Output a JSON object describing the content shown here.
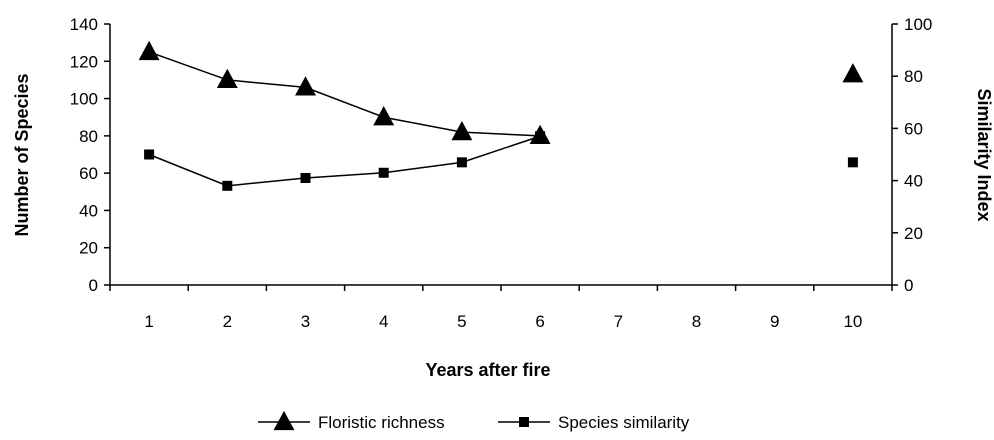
{
  "chart_data": {
    "type": "line",
    "title": "",
    "xlabel": "Years after fire",
    "ylabel": "Number of Species",
    "y2label": "Similarity Index",
    "categories": [
      "1",
      "2",
      "3",
      "4",
      "5",
      "6",
      "7",
      "8",
      "9",
      "10"
    ],
    "ylim": [
      0,
      140
    ],
    "yticks": [
      0,
      20,
      40,
      60,
      80,
      100,
      120,
      140
    ],
    "y2lim": [
      0,
      100
    ],
    "y2ticks": [
      0,
      20,
      40,
      60,
      80,
      100
    ],
    "grid": false,
    "legend_position": "bottom",
    "series": [
      {
        "name": "Floristic richness",
        "axis": "left",
        "marker": "triangle",
        "color": "#000000",
        "values": [
          125,
          110,
          106,
          90,
          82,
          80,
          null,
          null,
          null,
          113
        ]
      },
      {
        "name": "Species similarity",
        "axis": "right",
        "marker": "square",
        "color": "#000000",
        "values": [
          50,
          38,
          41,
          43,
          47,
          57,
          null,
          null,
          null,
          47
        ]
      }
    ]
  }
}
